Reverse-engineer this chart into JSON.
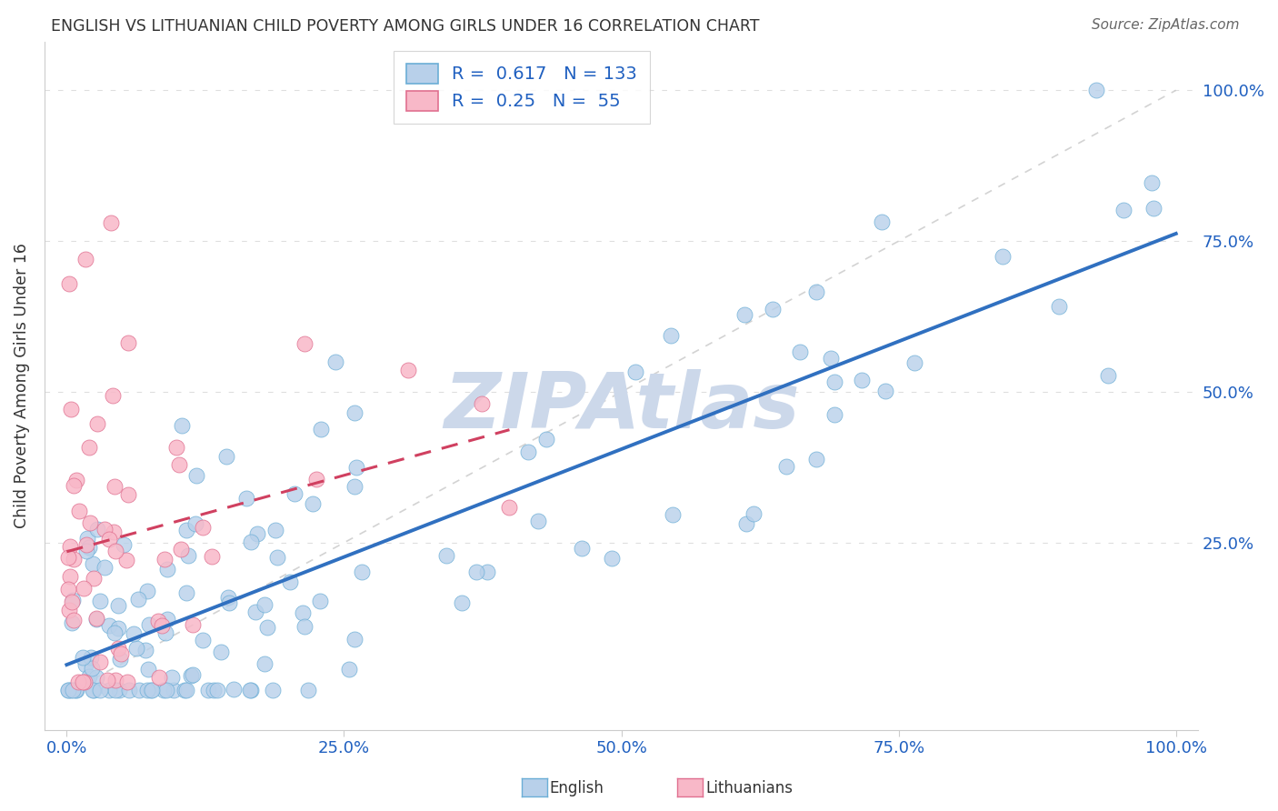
{
  "title": "ENGLISH VS LITHUANIAN CHILD POVERTY AMONG GIRLS UNDER 16 CORRELATION CHART",
  "source": "Source: ZipAtlas.com",
  "ylabel": "Child Poverty Among Girls Under 16",
  "r_english": 0.617,
  "n_english": 133,
  "r_lithuanian": 0.25,
  "n_lithuanian": 55,
  "english_face_color": "#b8d0ea",
  "english_edge_color": "#6baed6",
  "lithuanian_face_color": "#f8b8c8",
  "lithuanian_edge_color": "#e07090",
  "english_line_color": "#3070c0",
  "lithuanian_line_color": "#d04060",
  "diag_line_color": "#c8c8c8",
  "watermark_color": "#ccd8ea",
  "title_color": "#333333",
  "source_color": "#666666",
  "tick_color": "#2060c0",
  "legend_text_color": "#2060c0",
  "background": "#ffffff",
  "xlim": [
    0.0,
    1.0
  ],
  "ylim": [
    0.0,
    1.0
  ],
  "x_ticks": [
    0.0,
    0.25,
    0.5,
    0.75,
    1.0
  ],
  "x_tick_labels": [
    "0.0%",
    "25.0%",
    "50.0%",
    "75.0%",
    "100.0%"
  ],
  "y_tick_labels": [
    "",
    "25.0%",
    "50.0%",
    "75.0%",
    "100.0%"
  ],
  "watermark_text": "ZIPAtlas"
}
